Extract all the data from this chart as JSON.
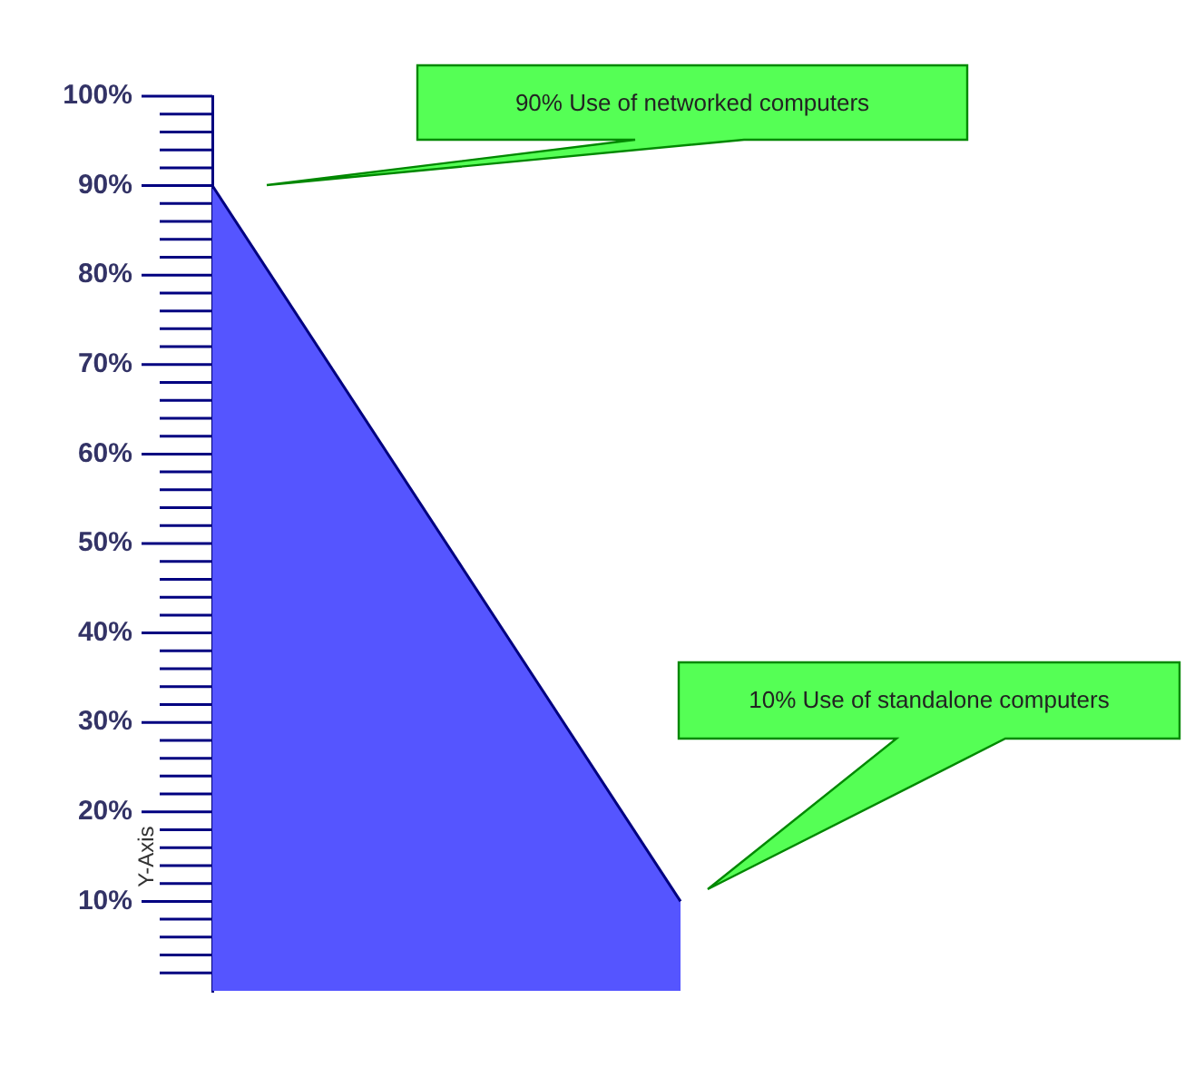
{
  "chart_data": {
    "type": "area",
    "ylabel": "Y-Axis",
    "categories": [
      null,
      null,
      null
    ],
    "values": [
      90,
      10,
      null
    ],
    "color": "#5555ff",
    "ylim": [
      0,
      100
    ],
    "yticks": [
      {
        "value": 10,
        "label": "10%"
      },
      {
        "value": 20,
        "label": "20%"
      },
      {
        "value": 30,
        "label": "30%"
      },
      {
        "value": 40,
        "label": "40%"
      },
      {
        "value": 50,
        "label": "50%"
      },
      {
        "value": 60,
        "label": "60%"
      },
      {
        "value": 70,
        "label": "70%"
      },
      {
        "value": 80,
        "label": "80%"
      },
      {
        "value": 90,
        "label": "90%"
      },
      {
        "value": 100,
        "label": "100%"
      }
    ],
    "legend": false,
    "marker": "none",
    "annotations": [
      "90% Use of networked computers",
      "10% Use of standalone computers"
    ]
  }
}
